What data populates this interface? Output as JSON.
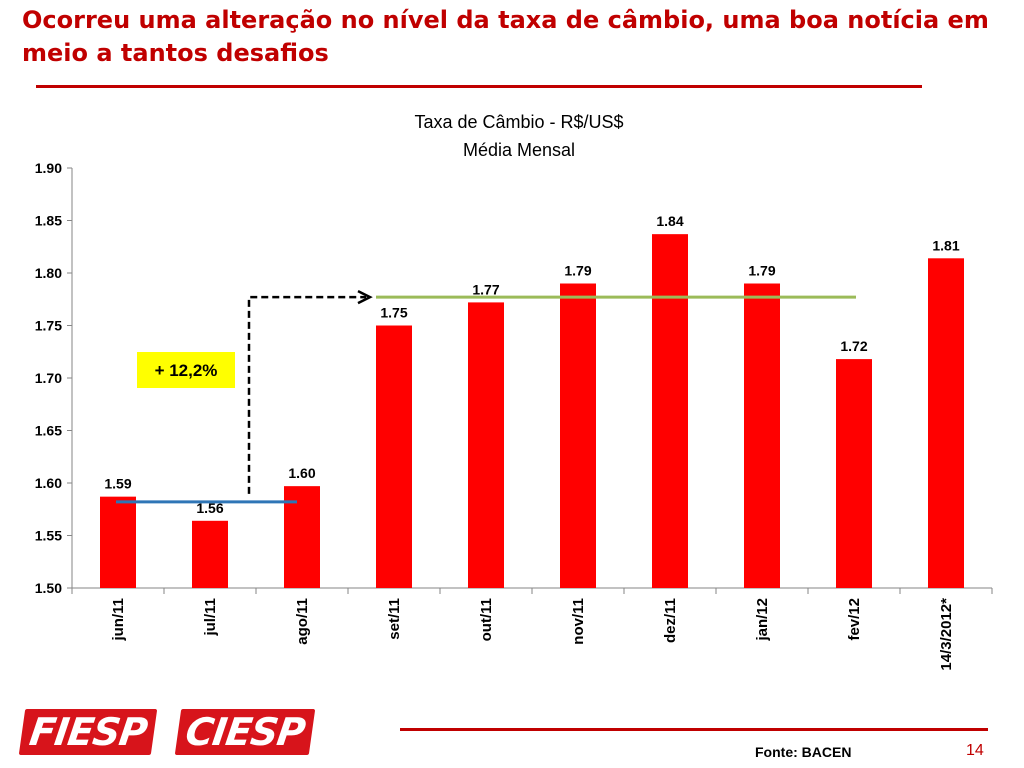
{
  "slide": {
    "title": "Ocorreu uma alteração no nível da taxa de câmbio, uma boa notícia em meio a tantos desafios",
    "source": "Fonte: BACEN",
    "page_number": "14",
    "logos": [
      "FIESP",
      "CIESP"
    ]
  },
  "colors": {
    "title": "#c00000",
    "bars": "#ff0000",
    "before_line": "#2e75b6",
    "after_line": "#9bbb59",
    "callout_bg": "#ffff00"
  },
  "chart_data": {
    "type": "bar",
    "title": "Taxa de Câmbio - R$/US$",
    "subtitle": "Média Mensal",
    "categories": [
      "jun/11",
      "jul/11",
      "ago/11",
      "set/11",
      "out/11",
      "nov/11",
      "dez/11",
      "jan/12",
      "fev/12",
      "14/3/2012*"
    ],
    "values": [
      1.587,
      1.564,
      1.597,
      1.75,
      1.772,
      1.79,
      1.837,
      1.79,
      1.718,
      1.814
    ],
    "value_labels": [
      "1.59",
      "1.56",
      "1.60",
      "1.75",
      "1.77",
      "1.79",
      "1.84",
      "1.79",
      "1.72",
      "1.81"
    ],
    "ylim": [
      1.5,
      1.9
    ],
    "yticks": [
      "1.50",
      "1.55",
      "1.60",
      "1.65",
      "1.70",
      "1.75",
      "1.80",
      "1.85",
      "1.90"
    ],
    "grid": false,
    "xlabel": "",
    "ylabel": "",
    "annotations": {
      "callout": "+ 12,2%",
      "before_level": 1.582,
      "after_level": 1.777
    }
  }
}
